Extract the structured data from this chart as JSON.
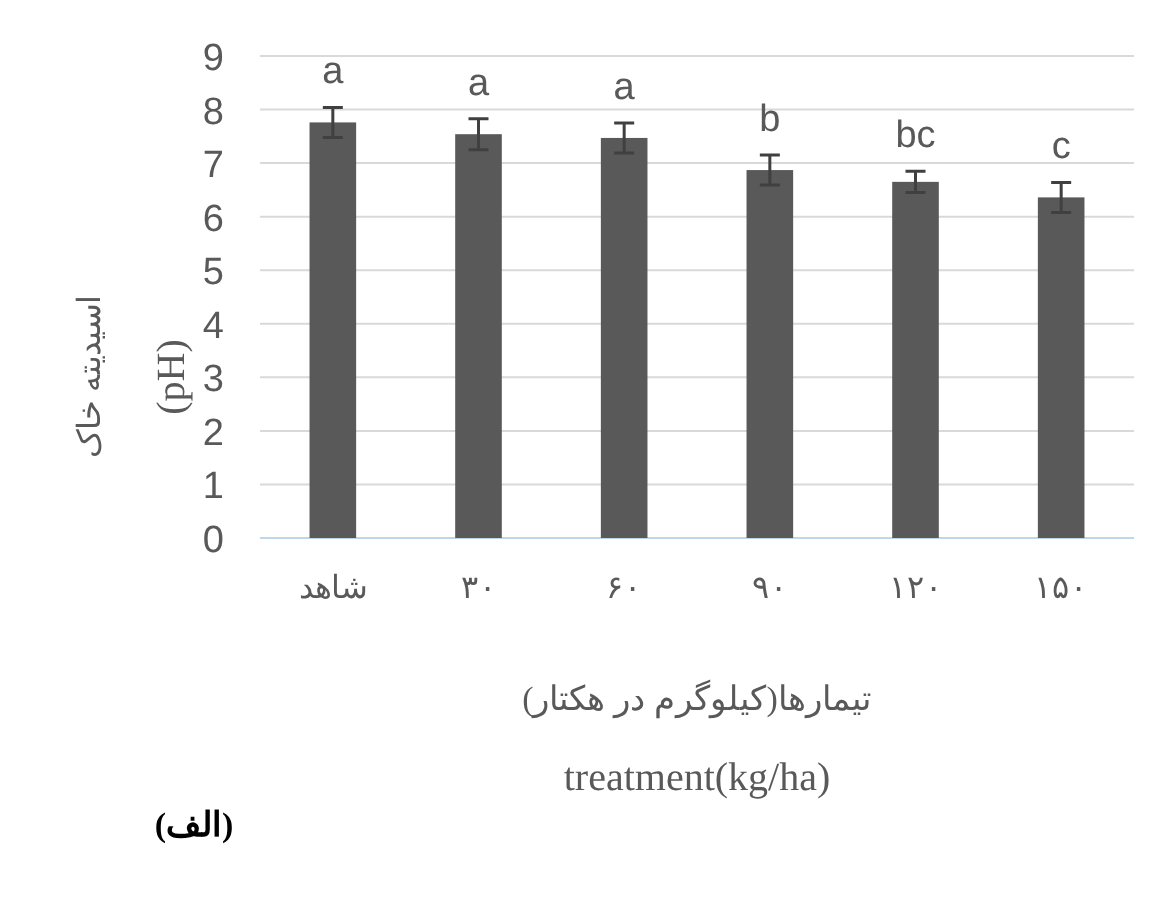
{
  "chart_data": {
    "type": "bar",
    "categories": [
      "شاهد",
      "۳۰",
      "۶۰",
      "۹۰",
      "۱۲۰",
      "۱۵۰"
    ],
    "values": [
      7.76,
      7.54,
      7.47,
      6.87,
      6.65,
      6.36
    ],
    "errors": [
      0.28,
      0.29,
      0.28,
      0.28,
      0.2,
      0.28
    ],
    "color": "#595959",
    "ylim": [
      0,
      9
    ],
    "yticks": [
      0,
      1,
      2,
      3,
      4,
      5,
      6,
      7,
      8,
      9
    ],
    "grid": "y",
    "ylabel": "اسیدیته خاک\n(pH)",
    "xlabel": "تیمارها(کیلوگرم در هکتار)\ntreatment(kg/ha)",
    "annotations": [
      {
        "text": "a",
        "x": "شاهد",
        "y": 8.04
      },
      {
        "text": "a",
        "x": "۳۰",
        "y": 7.83
      },
      {
        "text": "a",
        "x": "۶۰",
        "y": 7.75
      },
      {
        "text": "b",
        "x": "۹۰",
        "y": 7.15
      },
      {
        "text": "bc",
        "x": "۱۲۰",
        "y": 6.85
      },
      {
        "text": "c",
        "x": "۱۵۰",
        "y": 6.64
      },
      "(الف)"
    ]
  }
}
